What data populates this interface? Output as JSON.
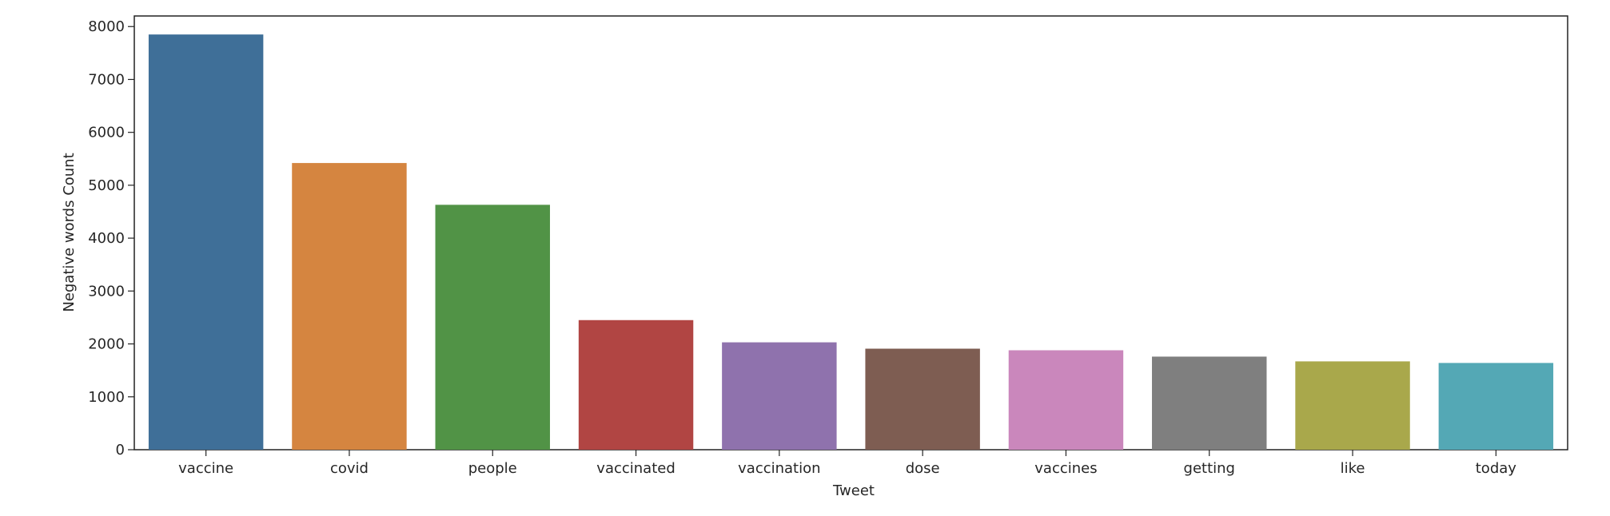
{
  "chart_data": {
    "type": "bar",
    "categories": [
      "vaccine",
      "covid",
      "people",
      "vaccinated",
      "vaccination",
      "dose",
      "vaccines",
      "getting",
      "like",
      "today"
    ],
    "values": [
      7850,
      5420,
      4630,
      2450,
      2030,
      1910,
      1880,
      1760,
      1670,
      1640
    ],
    "colors": [
      "#3f6f98",
      "#d58540",
      "#519346",
      "#b14543",
      "#8f72ad",
      "#7e5d52",
      "#ca87bc",
      "#7f7f7f",
      "#a9a84b",
      "#54a8b5"
    ],
    "title": "",
    "xlabel": "Tweet",
    "ylabel": "Negative words Count",
    "ylim": [
      0,
      8200
    ],
    "yticks": [
      0,
      1000,
      2000,
      3000,
      4000,
      5000,
      6000,
      7000,
      8000
    ],
    "grid": false,
    "legend": "none"
  }
}
